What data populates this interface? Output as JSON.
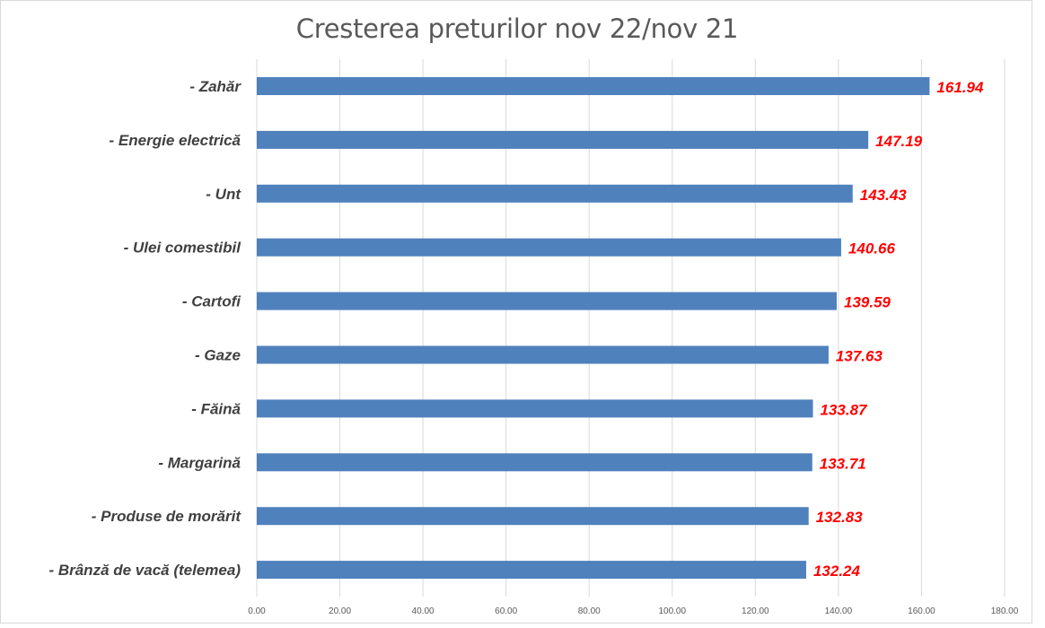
{
  "chart_data": {
    "type": "bar",
    "orientation": "horizontal",
    "title": "Cresterea preturilor nov 22/nov 21",
    "xlabel": "",
    "ylabel": "",
    "categories": [
      "- Zahăr",
      "- Energie electrică",
      "- Unt",
      "- Ulei comestibil",
      "- Cartofi",
      "- Gaze",
      "- Făină",
      "- Margarină",
      "- Produse de morărit",
      "- Brânză de vacă (telemea)"
    ],
    "values": [
      161.94,
      147.19,
      143.43,
      140.66,
      139.59,
      137.63,
      133.87,
      133.71,
      132.83,
      132.24
    ],
    "value_labels": [
      "161.94",
      "147.19",
      "143.43",
      "140.66",
      "139.59",
      "137.63",
      "133.87",
      "133.71",
      "132.83",
      "132.24"
    ],
    "xlim": [
      0,
      180
    ],
    "ticks": [
      "0.00",
      "20.00",
      "40.00",
      "60.00",
      "80.00",
      "100.00",
      "120.00",
      "140.00",
      "160.00",
      "180.00"
    ],
    "tick_values": [
      0,
      20,
      40,
      60,
      80,
      100,
      120,
      140,
      160,
      180
    ],
    "grid": true,
    "legend": "none",
    "bar_color": "#4f81bd",
    "label_color": "#ff0000",
    "grid_color": "#d9d9d9"
  }
}
